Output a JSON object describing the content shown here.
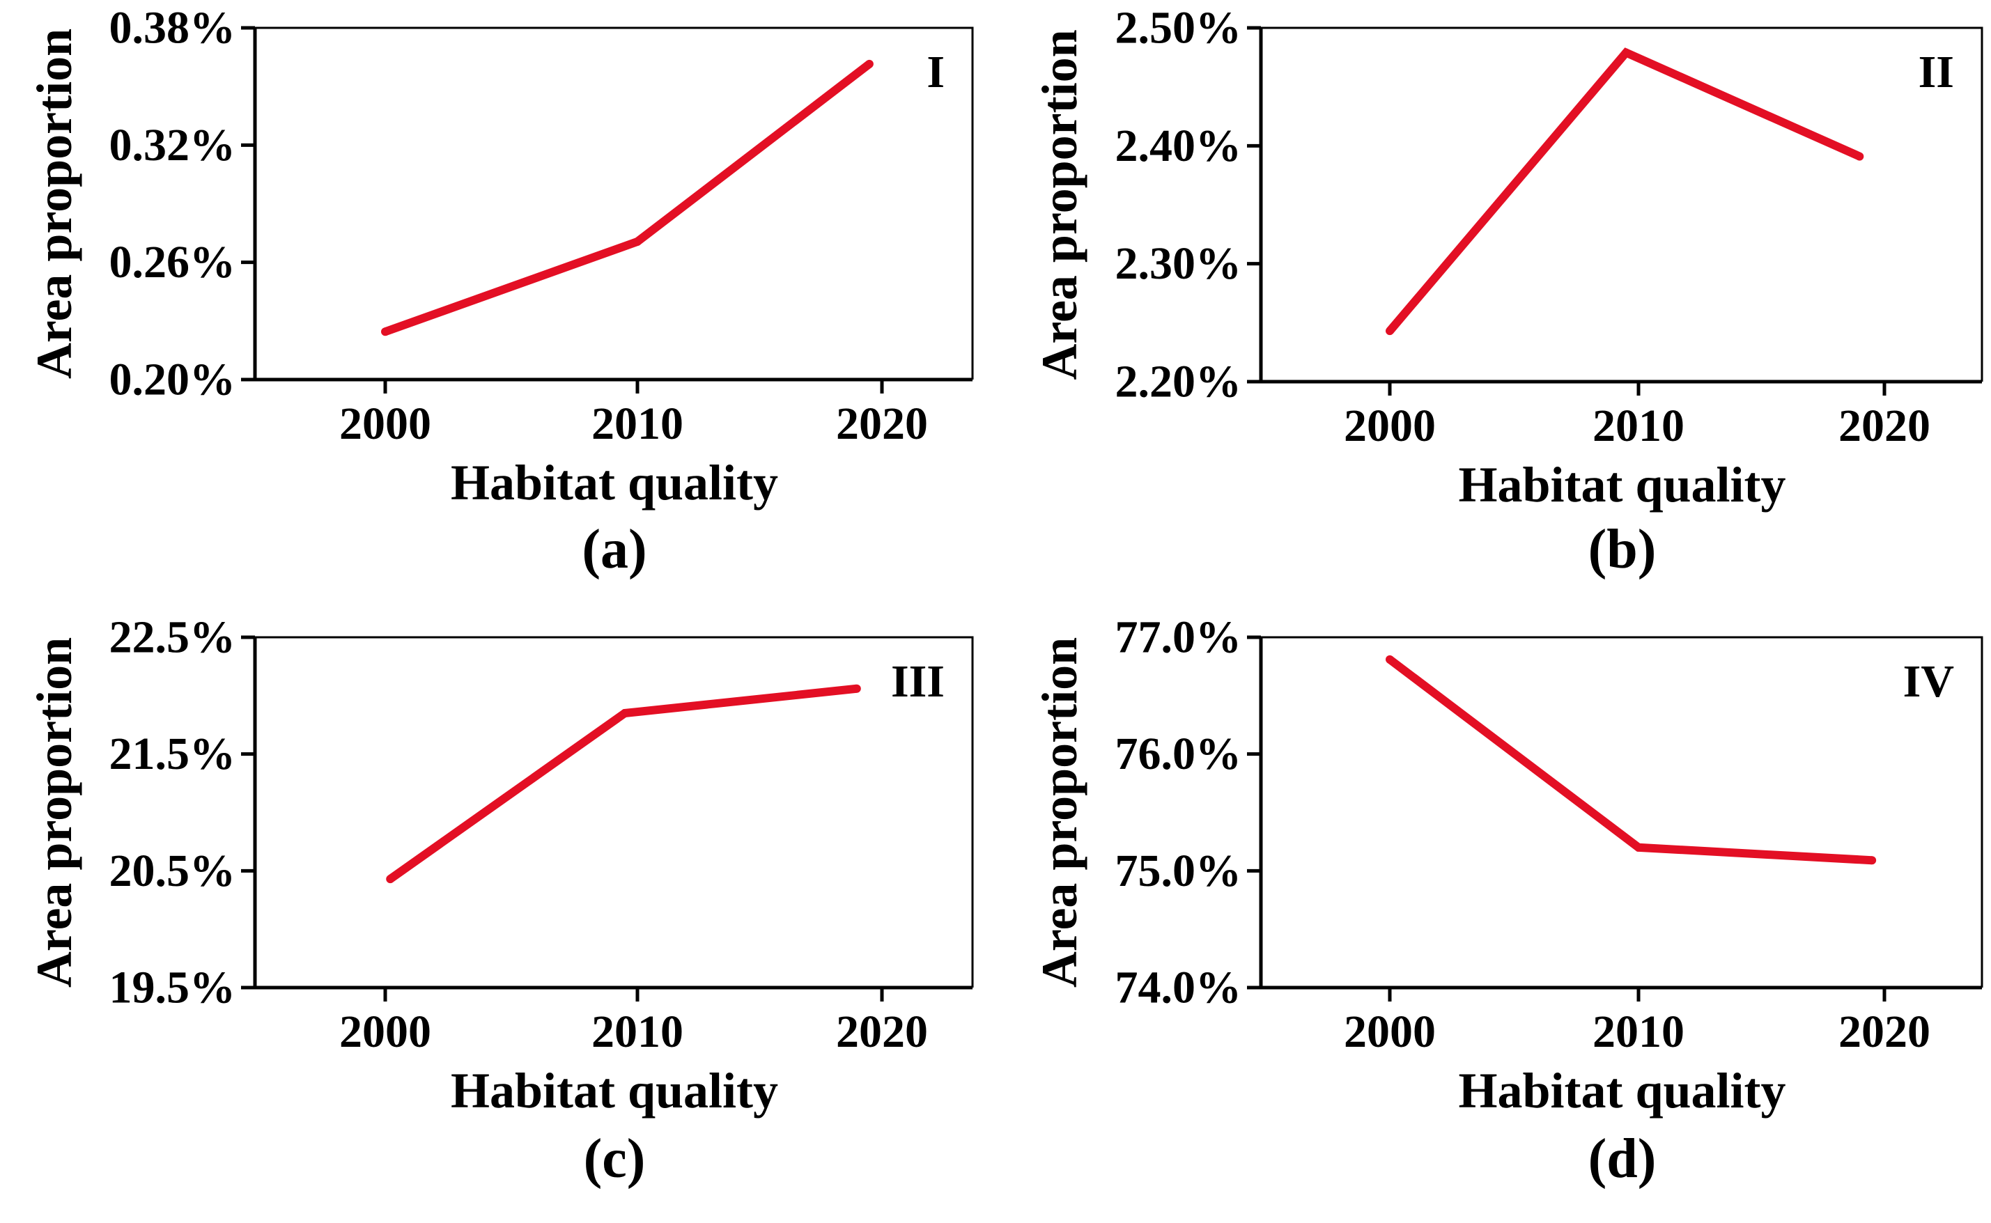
{
  "figure": {
    "charts": [
      {
        "id": "a",
        "type": "line",
        "panel_label": "(a)",
        "roman_label": "I",
        "xlabel": "Habitat quality",
        "ylabel": "Area proportion",
        "categories": [
          "2000",
          "2010",
          "2020"
        ],
        "values": [
          0.2245,
          0.2706,
          0.3615
        ],
        "ylim": [
          0.2,
          0.38
        ],
        "yticks": [
          0.2,
          0.26,
          0.32,
          0.38
        ],
        "ytick_labels": [
          "0.20%",
          "0.26%",
          "0.32%",
          "0.38%"
        ],
        "x_offsets": [
          0,
          0,
          -0.05
        ],
        "color": "#e30f24"
      },
      {
        "id": "b",
        "type": "line",
        "panel_label": "(b)",
        "roman_label": "II",
        "xlabel": "Habitat quality",
        "ylabel": "Area proportion",
        "categories": [
          "2000",
          "2010",
          "2020"
        ],
        "values": [
          2.243,
          2.479,
          2.391
        ],
        "ylim": [
          2.2,
          2.5
        ],
        "yticks": [
          2.2,
          2.3,
          2.4,
          2.5
        ],
        "ytick_labels": [
          "2.20%",
          "2.30%",
          "2.40%",
          "2.50%"
        ],
        "x_offsets": [
          0,
          -0.05,
          -0.1
        ],
        "color": "#e30f24"
      },
      {
        "id": "c",
        "type": "line",
        "panel_label": "(c)",
        "roman_label": "III",
        "xlabel": "Habitat quality",
        "ylabel": "Area proportion",
        "categories": [
          "2000",
          "2010",
          "2020"
        ],
        "values": [
          20.43,
          21.85,
          22.06
        ],
        "ylim": [
          19.5,
          22.5
        ],
        "yticks": [
          19.5,
          20.5,
          21.5,
          22.5
        ],
        "ytick_labels": [
          "19.5%",
          "20.5%",
          "21.5%",
          "22.5%"
        ],
        "x_offsets": [
          0.02,
          -0.05,
          -0.1
        ],
        "color": "#e30f24"
      },
      {
        "id": "d",
        "type": "line",
        "panel_label": "(d)",
        "roman_label": "IV",
        "xlabel": "Habitat quality",
        "ylabel": "Area proportion",
        "categories": [
          "2000",
          "2010",
          "2020"
        ],
        "values": [
          76.81,
          75.2,
          75.09
        ],
        "ylim": [
          74.0,
          77.0
        ],
        "yticks": [
          74.0,
          75.0,
          76.0,
          77.0
        ],
        "ytick_labels": [
          "74.0%",
          "75.0%",
          "76.0%",
          "77.0%"
        ],
        "x_offsets": [
          0,
          0,
          -0.05
        ],
        "color": "#e30f24"
      }
    ]
  }
}
